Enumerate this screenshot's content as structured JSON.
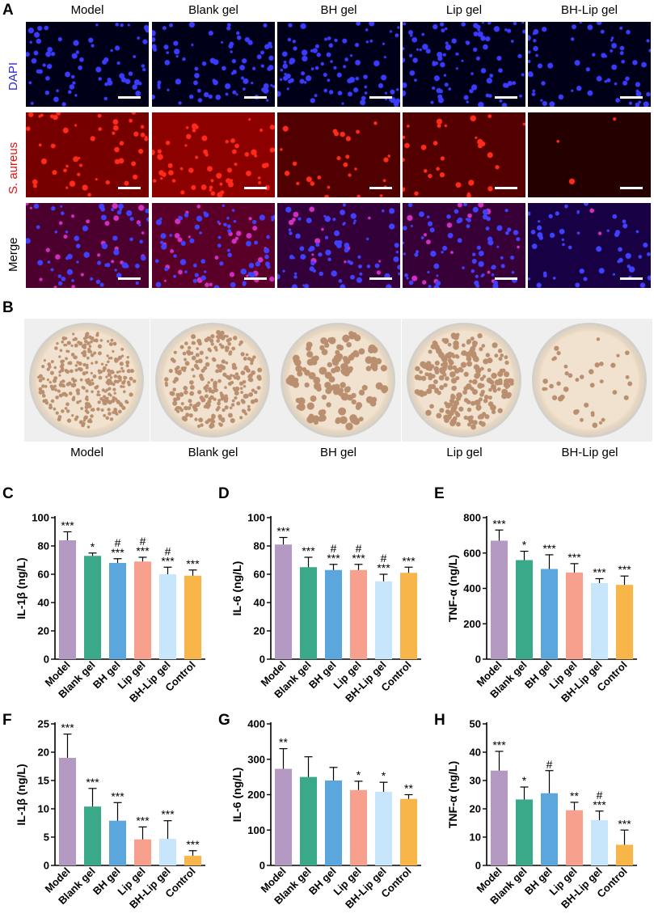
{
  "panels": {
    "A": "A",
    "B": "B",
    "C": "C",
    "D": "D",
    "E": "E",
    "F": "F",
    "G": "G",
    "H": "H"
  },
  "groups": [
    "Model",
    "Blank gel",
    "BH gel",
    "Lip gel",
    "BH-Lip gel"
  ],
  "rows": [
    {
      "label": "DAPI",
      "color": "#2a2ae0"
    },
    {
      "label": "S. aureus",
      "color": "#e01010"
    },
    {
      "label": "Merge",
      "color": "#000000"
    }
  ],
  "chart_categories": [
    "Model",
    "Blank gel",
    "BH gel",
    "Lip gel",
    "BH-Lip gel",
    "Control"
  ],
  "bar_colors": [
    "#b49ac3",
    "#3aa98a",
    "#5aa6dd",
    "#f7a08e",
    "#c8e6fb",
    "#f8b64a"
  ],
  "chart_data": [
    {
      "panel": "C",
      "type": "bar",
      "ylabel": "IL-1β (ng/L)",
      "ylim": [
        0,
        100
      ],
      "yticks": [
        0,
        20,
        40,
        60,
        80,
        100
      ],
      "categories": [
        "Model",
        "Blank gel",
        "BH gel",
        "Lip gel",
        "BH-Lip gel",
        "Control"
      ],
      "values": [
        84,
        73,
        68,
        69,
        60,
        59
      ],
      "errors": [
        6,
        2,
        3,
        3,
        5,
        4
      ],
      "annotations": [
        [
          "***"
        ],
        [
          "*"
        ],
        [
          "#",
          "***"
        ],
        [
          "#",
          "***"
        ],
        [
          "#",
          "***"
        ],
        [
          "***"
        ]
      ]
    },
    {
      "panel": "D",
      "type": "bar",
      "ylabel": "IL-6 (ng/L)",
      "ylim": [
        0,
        100
      ],
      "yticks": [
        0,
        20,
        40,
        60,
        80,
        100
      ],
      "categories": [
        "Model",
        "Blank gel",
        "BH gel",
        "Lip gel",
        "BH-Lip gel",
        "Control"
      ],
      "values": [
        81,
        65,
        63,
        63,
        55,
        61
      ],
      "errors": [
        5,
        7,
        4,
        4,
        5,
        4
      ],
      "annotations": [
        [
          "***"
        ],
        [
          "***"
        ],
        [
          "#",
          "***"
        ],
        [
          "#",
          "***"
        ],
        [
          "#",
          "***"
        ],
        [
          "***"
        ]
      ]
    },
    {
      "panel": "E",
      "type": "bar",
      "ylabel": "TNF-α (ng/L)",
      "ylim": [
        0,
        800
      ],
      "yticks": [
        0,
        200,
        400,
        600,
        800
      ],
      "categories": [
        "Model",
        "Blank gel",
        "BH gel",
        "Lip gel",
        "BH-Lip gel",
        "Control"
      ],
      "values": [
        670,
        560,
        510,
        490,
        430,
        420
      ],
      "errors": [
        60,
        50,
        80,
        50,
        25,
        50
      ],
      "annotations": [
        [
          "***"
        ],
        [
          "*"
        ],
        [
          "***"
        ],
        [
          "***"
        ],
        [
          "***"
        ],
        [
          "***"
        ]
      ]
    },
    {
      "panel": "F",
      "type": "bar",
      "ylabel": "IL-1β (ng/L)",
      "ylim": [
        0,
        25
      ],
      "yticks": [
        0,
        5,
        10,
        15,
        20,
        25
      ],
      "categories": [
        "Model",
        "Blank gel",
        "BH gel",
        "Lip gel",
        "BH-Lip gel",
        "Control"
      ],
      "values": [
        19,
        10.4,
        7.9,
        4.6,
        4.7,
        1.7
      ],
      "errors": [
        4.2,
        3.2,
        3.2,
        2.2,
        3.2,
        0.9
      ],
      "annotations": [
        [
          "***"
        ],
        [
          "***"
        ],
        [
          "***"
        ],
        [
          "***"
        ],
        [
          "***"
        ],
        [
          "***"
        ]
      ]
    },
    {
      "panel": "G",
      "type": "bar",
      "ylabel": "IL-6 (ng/L)",
      "ylim": [
        0,
        400
      ],
      "yticks": [
        0,
        100,
        200,
        300,
        400
      ],
      "categories": [
        "Model",
        "Blank gel",
        "BH gel",
        "Lip gel",
        "BH-Lip gel",
        "Control"
      ],
      "values": [
        273,
        250,
        240,
        213,
        208,
        188
      ],
      "errors": [
        57,
        57,
        37,
        25,
        27,
        12
      ],
      "annotations": [
        [
          "**"
        ],
        [],
        [],
        [
          "*"
        ],
        [
          "*"
        ],
        [
          "**"
        ]
      ]
    },
    {
      "panel": "H",
      "type": "bar",
      "ylabel": "TNF-α (ng/L)",
      "ylim": [
        0,
        50
      ],
      "yticks": [
        0,
        10,
        20,
        30,
        40,
        50
      ],
      "categories": [
        "Model",
        "Blank gel",
        "BH gel",
        "Lip gel",
        "BH-Lip gel",
        "Control"
      ],
      "values": [
        33.5,
        23.3,
        25.5,
        19.5,
        16,
        7.3
      ],
      "errors": [
        6.8,
        4.4,
        8,
        2.8,
        3.2,
        5.2
      ],
      "annotations": [
        [
          "***"
        ],
        [
          "*"
        ],
        [
          "#"
        ],
        [
          "**"
        ],
        [
          "#",
          "***"
        ],
        [
          "***"
        ]
      ]
    }
  ]
}
